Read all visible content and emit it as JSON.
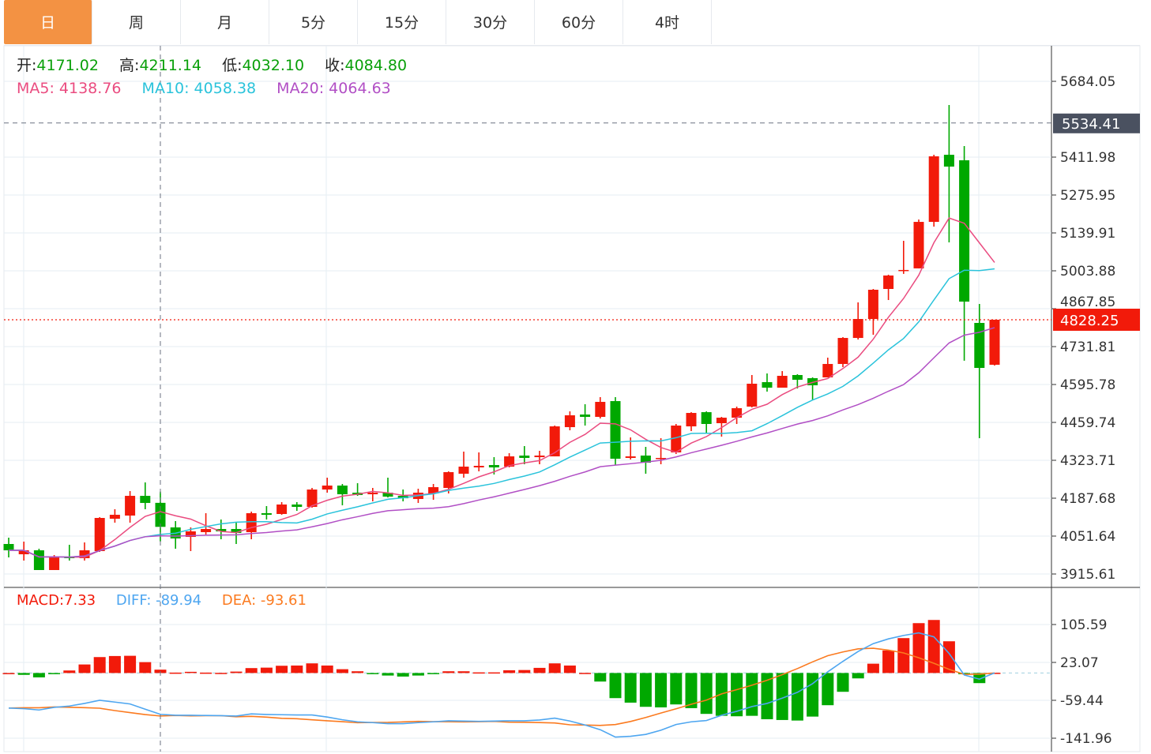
{
  "tabs": [
    {
      "label": "日",
      "active": true
    },
    {
      "label": "周"
    },
    {
      "label": "月"
    },
    {
      "label": "5分"
    },
    {
      "label": "15分"
    },
    {
      "label": "30分"
    },
    {
      "label": "60分"
    },
    {
      "label": "4时"
    }
  ],
  "ohlc_info": {
    "open_label": "开:",
    "open": "4171.02",
    "high_label": "高:",
    "high": "4211.14",
    "low_label": "低:",
    "low": "4032.10",
    "close_label": "收:",
    "close": "4084.80"
  },
  "ma_info": {
    "ma5": "MA5: 4138.76",
    "ma10": "MA10: 4058.38",
    "ma20": "MA20: 4064.63"
  },
  "macd_info": {
    "macd": "MACD:7.33",
    "diff": "DIFF: -89.94",
    "dea": "DEA: -93.61"
  },
  "colors": {
    "up": "#f21a0a",
    "down": "#00a800",
    "ma5": "#ea4c80",
    "ma10": "#2ac3db",
    "ma20": "#b14fc5",
    "diff": "#4ea6f0",
    "dea": "#fb7a1f",
    "accent": "#f39243"
  },
  "chart_data": {
    "type": "candlestick",
    "price_ticks": [
      "5684.05",
      "5411.98",
      "5275.95",
      "5139.91",
      "5003.88",
      "4867.85",
      "4731.81",
      "4595.78",
      "4459.74",
      "4323.71",
      "4187.68",
      "4051.64",
      "3915.61"
    ],
    "price_range": [
      3915.61,
      5684.05
    ],
    "crosshair_price": "5534.41",
    "last_price": "4828.25",
    "macd_ticks": [
      "105.59",
      "23.07",
      "-59.44",
      "-141.96"
    ],
    "macd_range": [
      -141.96,
      105.59
    ],
    "candles": [
      [
        4023.3,
        4046.0,
        3975.1,
        4000.6
      ],
      [
        3986.4,
        4031.8,
        3963.8,
        4000.6
      ],
      [
        4000.6,
        4006.3,
        3929.8,
        3929.8
      ],
      [
        3929.8,
        3983.6,
        3929.8,
        3978.0
      ],
      [
        3978.0,
        4020.4,
        3963.8,
        3972.3
      ],
      [
        3972.3,
        4028.9,
        3963.8,
        4000.6
      ],
      [
        3997.8,
        4119.6,
        3995.0,
        4116.8
      ],
      [
        4113.9,
        4148.0,
        4099.8,
        4128.1
      ],
      [
        4125.3,
        4213.2,
        4099.8,
        4196.1
      ],
      [
        4196.1,
        4244.3,
        4148.0,
        4170.6
      ],
      [
        4171.02,
        4211.14,
        4032.1,
        4084.8
      ],
      [
        4082.8,
        4105.5,
        4006.3,
        4043.1
      ],
      [
        4048.8,
        4082.8,
        3997.8,
        4068.6
      ],
      [
        4065.8,
        4133.8,
        4057.3,
        4077.1
      ],
      [
        4077.1,
        4111.2,
        4040.3,
        4068.6
      ],
      [
        4077.1,
        4099.8,
        4023.3,
        4062.9
      ],
      [
        4065.8,
        4139.5,
        4040.3,
        4133.8
      ],
      [
        4133.8,
        4159.3,
        4111.2,
        4128.1
      ],
      [
        4131.0,
        4173.5,
        4128.1,
        4165.0
      ],
      [
        4165.0,
        4173.5,
        4142.3,
        4156.5
      ],
      [
        4156.5,
        4224.5,
        4153.6,
        4218.8
      ],
      [
        4218.8,
        4261.3,
        4207.5,
        4233.0
      ],
      [
        4233.0,
        4238.7,
        4162.1,
        4201.8
      ],
      [
        4207.5,
        4241.5,
        4196.1,
        4199.0
      ],
      [
        4201.8,
        4224.5,
        4176.3,
        4207.5
      ],
      [
        4207.5,
        4261.3,
        4190.5,
        4193.3
      ],
      [
        4196.1,
        4218.8,
        4176.3,
        4187.6
      ],
      [
        4184.8,
        4221.7,
        4170.6,
        4207.5
      ],
      [
        4204.7,
        4238.7,
        4181.9,
        4227.3
      ],
      [
        4224.5,
        4284.0,
        4204.7,
        4281.2
      ],
      [
        4275.5,
        4354.9,
        4261.3,
        4301.0
      ],
      [
        4298.2,
        4352.0,
        4284.0,
        4303.8
      ],
      [
        4306.7,
        4335.0,
        4272.7,
        4298.2
      ],
      [
        4301.0,
        4349.2,
        4298.2,
        4337.8
      ],
      [
        4340.7,
        4374.7,
        4309.5,
        4332.2
      ],
      [
        4335.0,
        4357.7,
        4309.5,
        4340.7
      ],
      [
        4337.8,
        4448.4,
        4337.8,
        4445.5
      ],
      [
        4442.7,
        4499.4,
        4431.4,
        4485.2
      ],
      [
        4488.0,
        4524.9,
        4448.4,
        4479.5
      ],
      [
        4479.5,
        4550.4,
        4473.9,
        4533.4
      ],
      [
        4536.2,
        4550.4,
        4306.7,
        4329.3
      ],
      [
        4332.2,
        4405.9,
        4326.5,
        4337.8
      ],
      [
        4340.7,
        4371.9,
        4275.5,
        4315.2
      ],
      [
        4329.3,
        4403.1,
        4309.5,
        4332.2
      ],
      [
        4352.0,
        4454.1,
        4346.4,
        4448.4
      ],
      [
        4445.5,
        4496.5,
        4428.6,
        4493.7
      ],
      [
        4496.5,
        4499.4,
        4422.9,
        4454.1
      ],
      [
        4456.9,
        4479.5,
        4408.7,
        4476.7
      ],
      [
        4476.7,
        4516.4,
        4454.1,
        4510.7
      ],
      [
        4516.4,
        4629.8,
        4513.6,
        4598.6
      ],
      [
        4604.2,
        4635.4,
        4570.2,
        4584.4
      ],
      [
        4584.4,
        4643.9,
        4584.4,
        4626.9
      ],
      [
        4629.8,
        4632.6,
        4581.6,
        4612.8
      ],
      [
        4618.5,
        4621.3,
        4539.1,
        4593.0
      ],
      [
        4621.3,
        4692.2,
        4621.3,
        4669.5
      ],
      [
        4669.5,
        4765.8,
        4658.1,
        4762.9
      ],
      [
        4762.9,
        4890.5,
        4757.3,
        4831.0
      ],
      [
        4831.0,
        4938.7,
        4774.3,
        4935.9
      ],
      [
        4938.7,
        4989.9,
        4899.0,
        4987.1
      ],
      [
        5004.1,
        5111.5,
        4992.8,
        5006.9
      ],
      [
        5012.6,
        5188.0,
        5012.6,
        5179.5
      ],
      [
        5179.5,
        5420.4,
        5162.5,
        5414.8
      ],
      [
        5420.4,
        5599.0,
        5106.0,
        5378.0
      ],
      [
        5400.6,
        5451.6,
        4681.0,
        4893.3
      ],
      [
        4816.8,
        4884.8,
        4403.1,
        4655.3
      ],
      [
        4666.6,
        4828.25,
        4663.8,
        4828.25
      ]
    ],
    "macd_hist": [
      0,
      -4,
      -9.5,
      -1.7,
      5.5,
      18.6,
      34.7,
      37,
      37.5,
      23.7,
      7.33,
      0.9,
      2.6,
      0.9,
      0.3,
      3.1,
      10.7,
      11.7,
      15.8,
      16.3,
      21,
      16.3,
      8.3,
      3.8,
      -0.5,
      -5.5,
      -7.7,
      -5.5,
      -0.8,
      3.8,
      3.8,
      1.4,
      1.4,
      6,
      6.5,
      11.2,
      21,
      16.3,
      0.3,
      -18.6,
      -54.7,
      -64.5,
      -73.6,
      -74.8,
      -68.4,
      -76.5,
      -89,
      -93.2,
      -94.2,
      -93.2,
      -100.6,
      -102.3,
      -103.5,
      -94.9,
      -70.1,
      -40.9,
      -11.7,
      20.3,
      49,
      76,
      108.6,
      115.5,
      69.1,
      -2.6,
      -22,
      0.5
    ],
    "diff": [
      -76.3,
      -77.7,
      -80.5,
      -74.8,
      -71.9,
      -66.2,
      -59.3,
      -63.3,
      -67.4,
      -78.7,
      -89.94,
      -92,
      -92,
      -92.5,
      -92.8,
      -93.7,
      -89,
      -90.2,
      -90.8,
      -91.4,
      -91.4,
      -95.9,
      -101.8,
      -106.3,
      -108,
      -110.3,
      -110.3,
      -108,
      -106.3,
      -104,
      -104.6,
      -105.2,
      -104.6,
      -104,
      -104,
      -102.3,
      -98.3,
      -104.6,
      -113.1,
      -123.4,
      -139.5,
      -137.8,
      -133.7,
      -124.6,
      -112.1,
      -106.3,
      -103.5,
      -92,
      -83.4,
      -73.1,
      -66.2,
      -54.7,
      -42.1,
      -23.2,
      2.6,
      25.4,
      46.8,
      64,
      74.3,
      81.7,
      87.4,
      78.8,
      42.6,
      -4.3,
      -13.4,
      0.3
    ],
    "ma_periods": [
      5,
      10,
      20
    ],
    "crosshair_index": 10
  }
}
